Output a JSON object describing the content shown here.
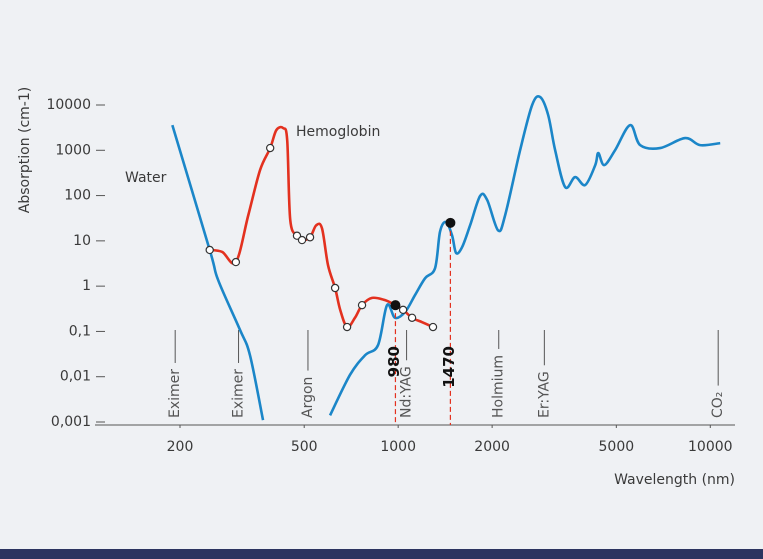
{
  "chart_data": {
    "type": "line",
    "x_label": "Wavelength (nm)",
    "y_label": "Absorption (cm-1)",
    "log_x": true,
    "log_y": true,
    "xlim": [
      115,
      12000
    ],
    "xticks": [
      200,
      500,
      1000,
      2000,
      5000,
      10000
    ],
    "ylim": [
      0.001,
      10000
    ],
    "yticks": [
      {
        "value": 0.001,
        "label": "0,001"
      },
      {
        "value": 0.01,
        "label": "0,01"
      },
      {
        "value": 0.1,
        "label": "0,1"
      },
      1,
      10,
      100,
      1000,
      10000
    ],
    "series": [
      {
        "name": "Water",
        "color": "#1b86c8",
        "x": [
          189,
          249,
          265,
          311,
          335,
          369,
          null,
          605,
          701,
          784,
          862,
          921,
          977,
          1053,
          1133,
          1220,
          1313,
          1362,
          1424,
          1489,
          1533,
          1603,
          1700,
          1830,
          1928,
          2090,
          2202,
          2459,
          2687,
          2850,
          3024,
          3183,
          3427,
          3690,
          3974,
          4280,
          4377,
          4574,
          4957,
          5537,
          5962,
          6906,
          8305,
          9275,
          10760
        ],
        "values": [
          3600,
          6.3,
          1.36,
          0.11,
          0.03,
          0.0011,
          null,
          0.0014,
          0.011,
          0.03,
          0.05,
          0.38,
          0.2,
          0.27,
          0.64,
          1.5,
          2.5,
          16,
          26,
          13,
          5.4,
          7.3,
          22,
          98,
          80,
          17,
          37,
          1010,
          10000,
          15000,
          6000,
          1010,
          154,
          256,
          171,
          471,
          867,
          471,
          1010,
          3600,
          1300,
          1120,
          1860,
          1300,
          1440
        ]
      },
      {
        "name": "Hemoglobin",
        "color": "#e3311f",
        "x": [
          249,
          273,
          302,
          331,
          361,
          389,
          407,
          428,
          441,
          451,
          474,
          492,
          522,
          546,
          570,
          596,
          628,
          652,
          686,
          727,
          766,
          825,
          908,
          977,
          1037,
          1108,
          1193,
          1293
        ],
        "values": [
          6.3,
          5.7,
          3.4,
          37,
          366,
          1120,
          2790,
          3090,
          1680,
          29,
          13,
          10.4,
          12,
          22,
          19,
          2.9,
          0.91,
          0.3,
          0.125,
          0.2,
          0.38,
          0.55,
          0.49,
          0.38,
          0.3,
          0.2,
          0.16,
          0.125
        ],
        "points": {
          "x": [
            249,
            302,
            389,
            474,
            492,
            522,
            628,
            686,
            766,
            1037,
            1108,
            1293
          ],
          "values": [
            6.3,
            3.4,
            1120,
            13,
            10.4,
            12,
            0.91,
            0.125,
            0.38,
            0.3,
            0.2,
            0.125
          ]
        }
      }
    ],
    "wavelength_markers": [
      {
        "x": 980,
        "y": 0.38
      },
      {
        "x": 1470,
        "y": 25
      }
    ],
    "lasers": [
      {
        "label": "Eximer",
        "x": 193
      },
      {
        "label": "Eximer",
        "x": 308
      },
      {
        "label": "Argon",
        "x": 514
      },
      {
        "label": "Nd:YAG",
        "x": 1064
      },
      {
        "label": "Holmium",
        "x": 2100
      },
      {
        "label": "Er:YAG",
        "x": 2940
      },
      {
        "label": "CO₂",
        "x": 10600
      }
    ]
  }
}
